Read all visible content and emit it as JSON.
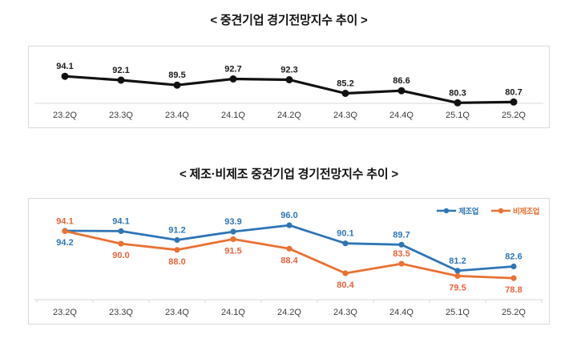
{
  "chart_data": [
    {
      "type": "line",
      "title": "< 중견기업 경기전망지수 추이 >",
      "categories": [
        "23.2Q",
        "23.3Q",
        "23.4Q",
        "24.1Q",
        "24.2Q",
        "24.3Q",
        "24.4Q",
        "25.1Q",
        "25.2Q"
      ],
      "series": [
        {
          "name": "중견기업 경기전망지수",
          "color": "#111111",
          "label_color": "#1a1a1a",
          "values": [
            94.1,
            92.1,
            89.5,
            92.7,
            92.3,
            85.2,
            86.6,
            80.3,
            80.7
          ],
          "label_pos": [
            "above",
            "above",
            "above",
            "above",
            "above",
            "above",
            "above",
            "above",
            "above"
          ]
        }
      ],
      "ylim": [
        80,
        97
      ],
      "grid": "baseline-only",
      "legend": "none",
      "data_labels": true
    },
    {
      "type": "line",
      "title": "< 제조·비제조 중견기업 경기전망지수 추이 >",
      "categories": [
        "23.2Q",
        "23.3Q",
        "23.4Q",
        "24.1Q",
        "24.2Q",
        "24.3Q",
        "24.4Q",
        "25.1Q",
        "25.2Q"
      ],
      "series": [
        {
          "name": "제조업",
          "color": "#2E75B6",
          "label_color": "#2E75B6",
          "values": [
            94.2,
            94.1,
            91.2,
            93.9,
            96.0,
            90.1,
            89.7,
            81.2,
            82.6
          ],
          "label_pos": [
            "below",
            "above",
            "above",
            "above",
            "above",
            "above",
            "above",
            "above",
            "above"
          ]
        },
        {
          "name": "비제조업",
          "color": "#E97132",
          "label_color": "#E8643C",
          "values": [
            94.1,
            90.0,
            88.0,
            91.5,
            88.4,
            80.4,
            83.5,
            79.5,
            78.8
          ],
          "label_pos": [
            "above",
            "below",
            "below",
            "below",
            "below",
            "below",
            "above",
            "below",
            "below"
          ]
        }
      ],
      "ylim": [
        72,
        97
      ],
      "grid": "baseline-only",
      "legend": "top-right",
      "data_labels": true
    }
  ],
  "axis_label_color": "#3d3d3d",
  "frame_color": "#d9d9d9"
}
